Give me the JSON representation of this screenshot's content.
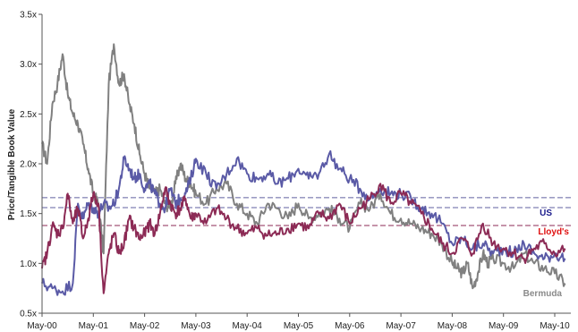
{
  "chart_data": {
    "type": "line",
    "title": "",
    "xlabel": "",
    "ylabel": "Price/Tangible Book Value",
    "x_ticks": [
      "May-00",
      "May-01",
      "May-02",
      "May-03",
      "May-04",
      "May-05",
      "May-06",
      "May-07",
      "May-08",
      "May-09",
      "May-10"
    ],
    "y_ticks": [
      "0.5x",
      "1.0x",
      "1.5x",
      "2.0x",
      "2.5x",
      "3.0x",
      "3.5x"
    ],
    "ylim": [
      0.5,
      3.5
    ],
    "xlim": [
      0,
      10.3
    ],
    "grid": false,
    "series_labels": [
      {
        "name": "US",
        "color": "#1a1a8c"
      },
      {
        "name": "Lloyd's",
        "color": "#e01010"
      },
      {
        "name": "Bermuda",
        "color": "#8a8a8a"
      }
    ],
    "reference_lines": [
      {
        "y": 1.66,
        "color": "#6060a0"
      },
      {
        "y": 1.56,
        "color": "#6060a0"
      },
      {
        "y": 1.38,
        "color": "#8c2a55"
      }
    ],
    "series": [
      {
        "name": "Bermuda",
        "color": "#808080",
        "x": [
          0,
          0.1,
          0.2,
          0.3,
          0.4,
          0.5,
          0.6,
          0.7,
          0.8,
          0.9,
          1.0,
          1.1,
          1.2,
          1.3,
          1.4,
          1.5,
          1.6,
          1.7,
          1.8,
          1.9,
          2.0,
          2.1,
          2.2,
          2.3,
          2.4,
          2.5,
          2.6,
          2.7,
          2.8,
          2.9,
          3.0,
          3.2,
          3.4,
          3.6,
          3.8,
          4.0,
          4.2,
          4.4,
          4.6,
          4.8,
          5.0,
          5.2,
          5.4,
          5.6,
          5.8,
          6.0,
          6.2,
          6.4,
          6.6,
          6.8,
          7.0,
          7.2,
          7.4,
          7.6,
          7.8,
          8.0,
          8.1,
          8.2,
          8.3,
          8.4,
          8.5,
          8.6,
          8.7,
          8.8,
          9.0,
          9.2,
          9.4,
          9.6,
          9.8,
          10.0,
          10.2
        ],
        "y": [
          2.2,
          2.0,
          2.6,
          2.8,
          3.1,
          2.7,
          2.5,
          2.4,
          2.2,
          1.95,
          1.7,
          1.6,
          1.1,
          2.8,
          3.2,
          2.8,
          2.9,
          2.6,
          2.4,
          2.1,
          1.9,
          1.75,
          1.7,
          1.75,
          1.6,
          1.55,
          1.8,
          2.0,
          1.85,
          1.8,
          1.7,
          1.6,
          1.75,
          1.8,
          1.6,
          1.5,
          1.4,
          1.6,
          1.55,
          1.45,
          1.6,
          1.45,
          1.5,
          1.55,
          1.45,
          1.35,
          1.6,
          1.55,
          1.7,
          1.5,
          1.45,
          1.4,
          1.35,
          1.3,
          1.2,
          1.0,
          0.95,
          0.9,
          1.0,
          0.75,
          0.9,
          1.1,
          1.0,
          1.05,
          1.0,
          0.95,
          1.1,
          1.0,
          0.95,
          0.9,
          0.8
        ]
      },
      {
        "name": "US",
        "color": "#5a5aa6",
        "x": [
          0,
          0.2,
          0.4,
          0.6,
          0.7,
          0.8,
          0.9,
          1.0,
          1.1,
          1.2,
          1.3,
          1.4,
          1.5,
          1.6,
          1.7,
          1.8,
          1.9,
          2.0,
          2.1,
          2.2,
          2.3,
          2.4,
          2.5,
          2.6,
          2.7,
          2.8,
          2.9,
          3.0,
          3.2,
          3.4,
          3.6,
          3.8,
          4.0,
          4.2,
          4.4,
          4.6,
          4.8,
          5.0,
          5.2,
          5.4,
          5.6,
          5.8,
          6.0,
          6.2,
          6.4,
          6.6,
          6.8,
          7.0,
          7.2,
          7.4,
          7.6,
          7.8,
          8.0,
          8.2,
          8.4,
          8.6,
          8.8,
          9.0,
          9.2,
          9.4,
          9.6,
          9.8,
          10.0,
          10.2
        ],
        "y": [
          0.8,
          0.75,
          0.72,
          0.8,
          1.6,
          1.45,
          1.6,
          1.55,
          1.5,
          1.6,
          1.55,
          1.6,
          1.75,
          2.05,
          1.95,
          1.85,
          1.9,
          1.75,
          1.8,
          1.7,
          1.6,
          1.55,
          1.75,
          1.6,
          1.65,
          1.7,
          1.85,
          2.05,
          1.9,
          1.75,
          1.9,
          2.05,
          1.9,
          1.85,
          1.9,
          1.8,
          1.85,
          1.95,
          1.85,
          1.9,
          2.1,
          1.95,
          1.85,
          1.75,
          1.65,
          1.75,
          1.7,
          1.7,
          1.65,
          1.55,
          1.5,
          1.4,
          1.2,
          1.25,
          1.15,
          1.2,
          1.1,
          1.15,
          1.1,
          1.2,
          1.1,
          1.05,
          1.1,
          1.05
        ]
      },
      {
        "name": "Lloyd's",
        "color": "#8c2a55",
        "x": [
          0,
          0.1,
          0.2,
          0.3,
          0.4,
          0.5,
          0.6,
          0.7,
          0.8,
          0.9,
          1.0,
          1.1,
          1.2,
          1.3,
          1.4,
          1.5,
          1.6,
          1.7,
          1.8,
          1.9,
          2.0,
          2.1,
          2.2,
          2.3,
          2.4,
          2.5,
          2.6,
          2.7,
          2.8,
          2.9,
          3.0,
          3.2,
          3.4,
          3.6,
          3.8,
          4.0,
          4.2,
          4.4,
          4.6,
          4.8,
          5.0,
          5.2,
          5.4,
          5.6,
          5.8,
          6.0,
          6.2,
          6.4,
          6.6,
          6.8,
          7.0,
          7.2,
          7.4,
          7.6,
          7.8,
          8.0,
          8.2,
          8.4,
          8.6,
          8.8,
          9.0,
          9.2,
          9.4,
          9.6,
          9.8,
          10.0,
          10.2
        ],
        "y": [
          0.95,
          1.1,
          1.38,
          1.3,
          1.35,
          1.7,
          1.4,
          1.55,
          1.25,
          1.45,
          1.7,
          1.6,
          0.7,
          1.1,
          1.3,
          1.1,
          1.2,
          1.45,
          1.35,
          1.25,
          1.3,
          1.4,
          1.3,
          1.5,
          1.75,
          1.6,
          1.5,
          1.55,
          1.65,
          1.45,
          1.5,
          1.4,
          1.55,
          1.45,
          1.35,
          1.3,
          1.35,
          1.28,
          1.3,
          1.35,
          1.4,
          1.35,
          1.5,
          1.45,
          1.6,
          1.4,
          1.55,
          1.65,
          1.8,
          1.6,
          1.7,
          1.6,
          1.5,
          1.35,
          1.2,
          1.1,
          1.25,
          1.1,
          1.4,
          1.2,
          1.15,
          1.1,
          1.05,
          1.15,
          1.2,
          1.1,
          1.15
        ]
      }
    ]
  }
}
